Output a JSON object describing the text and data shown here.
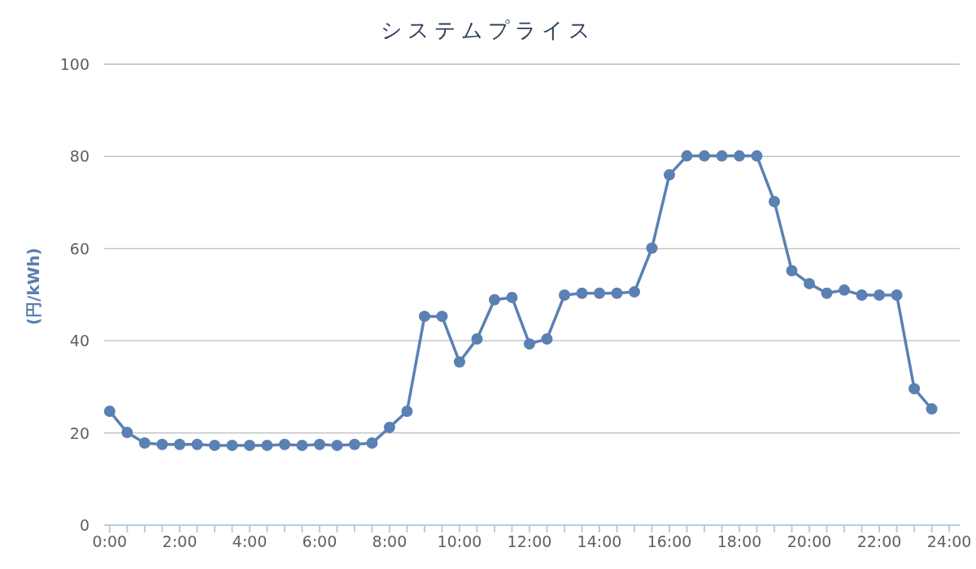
{
  "chart_data": {
    "type": "line",
    "title": "システムプライス",
    "ylabel": "(円/kWh)",
    "x": [
      0,
      0.5,
      1,
      1.5,
      2,
      2.5,
      3,
      3.5,
      4,
      4.5,
      5,
      5.5,
      6,
      6.5,
      7,
      7.5,
      8,
      8.5,
      9,
      9.5,
      10,
      10.5,
      11,
      11.5,
      12,
      12.5,
      13,
      13.5,
      14,
      14.5,
      15,
      15.5,
      16,
      16.5,
      17,
      17.5,
      18,
      18.5,
      19,
      19.5,
      20,
      20.5,
      21,
      21.5,
      22,
      22.5,
      23,
      23.5
    ],
    "series": [
      {
        "color": "#5b80b3",
        "values": [
          24.7,
          20.1,
          17.8,
          17.5,
          17.5,
          17.5,
          17.3,
          17.3,
          17.3,
          17.3,
          17.5,
          17.3,
          17.5,
          17.3,
          17.5,
          17.8,
          21.2,
          24.7,
          45.3,
          45.3,
          35.4,
          40.4,
          48.9,
          49.4,
          39.3,
          40.4,
          49.9,
          50.3,
          50.3,
          50.3,
          50.6,
          60.1,
          76.0,
          80.1,
          80.1,
          80.1,
          80.1,
          80.1,
          70.2,
          55.2,
          52.4,
          50.3,
          51.0,
          49.9,
          49.9,
          49.9,
          29.6,
          25.2
        ]
      }
    ],
    "xlim": [
      -0.16,
      24.3
    ],
    "ylim": [
      0,
      100
    ],
    "yticks": [
      0,
      20,
      40,
      60,
      80,
      100
    ],
    "xticks": [
      {
        "value": 0,
        "label": "0:00"
      },
      {
        "value": 1,
        "label": null
      },
      {
        "value": 2,
        "label": "2:00"
      },
      {
        "value": 3,
        "label": null
      },
      {
        "value": 4,
        "label": "4:00"
      },
      {
        "value": 5,
        "label": null
      },
      {
        "value": 6,
        "label": "6:00"
      },
      {
        "value": 7,
        "label": null
      },
      {
        "value": 8,
        "label": "8:00"
      },
      {
        "value": 9,
        "label": null
      },
      {
        "value": 10,
        "label": "10:00"
      },
      {
        "value": 11,
        "label": null
      },
      {
        "value": 12,
        "label": "12:00"
      },
      {
        "value": 13,
        "label": null
      },
      {
        "value": 14,
        "label": "14:00"
      },
      {
        "value": 15,
        "label": null
      },
      {
        "value": 16,
        "label": "16:00"
      },
      {
        "value": 17,
        "label": null
      },
      {
        "value": 18,
        "label": "18:00"
      },
      {
        "value": 19,
        "label": null
      },
      {
        "value": 20,
        "label": "20:00"
      },
      {
        "value": 21,
        "label": null
      },
      {
        "value": 22,
        "label": "22:00"
      },
      {
        "value": 23,
        "label": null
      },
      {
        "value": 24,
        "label": "24:00"
      }
    ],
    "grid": "y",
    "marker": "circle",
    "line_style": "solid"
  }
}
